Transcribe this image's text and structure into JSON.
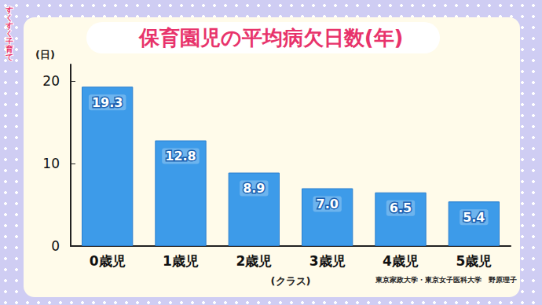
{
  "chart_data": {
    "type": "bar",
    "title": "保育園児の平均病欠日数(年)",
    "y_label": "(日)",
    "x_label": "(クラス)",
    "categories": [
      "0歳児",
      "1歳児",
      "2歳児",
      "3歳児",
      "4歳児",
      "5歳児"
    ],
    "values": [
      19.3,
      12.8,
      8.9,
      7.0,
      6.5,
      5.4
    ],
    "value_labels": [
      "19.3",
      "12.8",
      "8.9",
      "7.0",
      "6.5",
      "5.4"
    ],
    "color": "#3d9be9",
    "ylim": [
      0,
      22
    ],
    "yticks": [
      0,
      10,
      20
    ],
    "grid": false,
    "data_labels": true,
    "annotations": [
      "すくすく子育て",
      "東京家政大学・東京女子医科大学　野原理子"
    ]
  }
}
